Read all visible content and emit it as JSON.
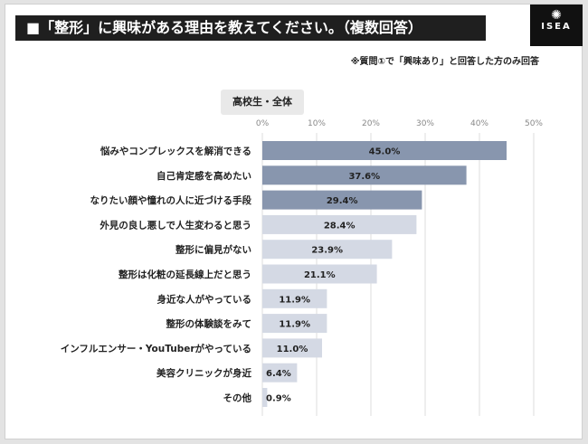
{
  "title": "■「整形」に興味がある理由を教えてください。（複数回答）",
  "note": "※質問①で「興味あり」と回答した方のみ回答",
  "segment_label": "高校生・全体",
  "logo": {
    "text": "ISEA",
    "icon": "sun-burst-icon"
  },
  "colors": {
    "bar_top": "#8896ae",
    "bar_other": "#d4d9e4",
    "grid": "#dddddd"
  },
  "chart_data": {
    "type": "bar",
    "orientation": "horizontal",
    "title": "",
    "xlabel": "",
    "ylabel": "",
    "xlim": [
      0,
      50
    ],
    "ticks": [
      "0%",
      "10%",
      "20%",
      "30%",
      "40%",
      "50%"
    ],
    "tick_values": [
      0,
      10,
      20,
      30,
      40,
      50
    ],
    "grid": true,
    "categories": [
      "悩みやコンプレックスを解消できる",
      "自己肯定感を高めたい",
      "なりたい顔や憧れの人に近づける手段",
      "外見の良し悪しで人生変わると思う",
      "整形に偏見がない",
      "整形は化粧の延長線上だと思う",
      "身近な人がやっている",
      "整形の体験談をみて",
      "インフルエンサー・YouTuberがやっている",
      "美容クリニックが身近",
      "その他"
    ],
    "values": [
      45.0,
      37.6,
      29.4,
      28.4,
      23.9,
      21.1,
      11.9,
      11.9,
      11.0,
      6.4,
      0.9
    ],
    "value_labels": [
      "45.0%",
      "37.6%",
      "29.4%",
      "28.4%",
      "23.9%",
      "21.1%",
      "11.9%",
      "11.9%",
      "11.0%",
      "6.4%",
      "0.9%"
    ],
    "highlight_top_n": 3
  }
}
